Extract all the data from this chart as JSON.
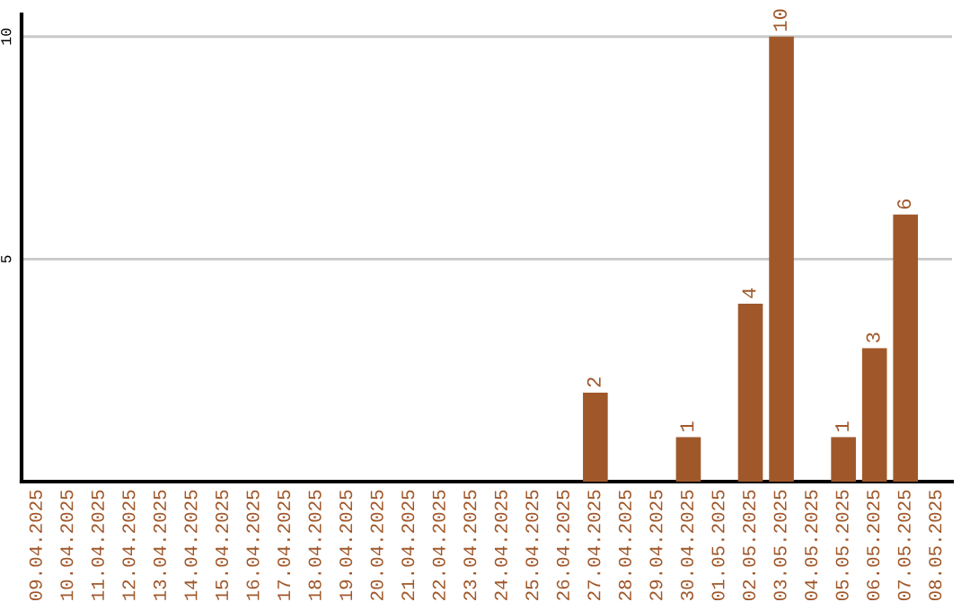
{
  "chart_data": {
    "type": "bar",
    "categories": [
      "09.04.2025",
      "10.04.2025",
      "11.04.2025",
      "12.04.2025",
      "13.04.2025",
      "14.04.2025",
      "15.04.2025",
      "16.04.2025",
      "17.04.2025",
      "18.04.2025",
      "19.04.2025",
      "20.04.2025",
      "21.04.2025",
      "22.04.2025",
      "23.04.2025",
      "24.04.2025",
      "25.04.2025",
      "26.04.2025",
      "27.04.2025",
      "28.04.2025",
      "29.04.2025",
      "30.04.2025",
      "01.05.2025",
      "02.05.2025",
      "03.05.2025",
      "04.05.2025",
      "05.05.2025",
      "06.05.2025",
      "07.05.2025",
      "08.05.2025"
    ],
    "values": [
      0,
      0,
      0,
      0,
      0,
      0,
      0,
      0,
      0,
      0,
      0,
      0,
      0,
      0,
      0,
      0,
      0,
      0,
      2,
      0,
      0,
      1,
      0,
      4,
      10,
      0,
      1,
      3,
      6,
      0
    ],
    "value_labels": [
      null,
      null,
      null,
      null,
      null,
      null,
      null,
      null,
      null,
      null,
      null,
      null,
      null,
      null,
      null,
      null,
      null,
      null,
      "2",
      null,
      null,
      "1",
      null,
      "4",
      "10",
      null,
      "1",
      "3",
      "6",
      null
    ],
    "color": "#a0582a",
    "ylim": [
      0,
      10.5
    ],
    "yticks": [
      5,
      10
    ],
    "grid": "y",
    "legend": false
  }
}
